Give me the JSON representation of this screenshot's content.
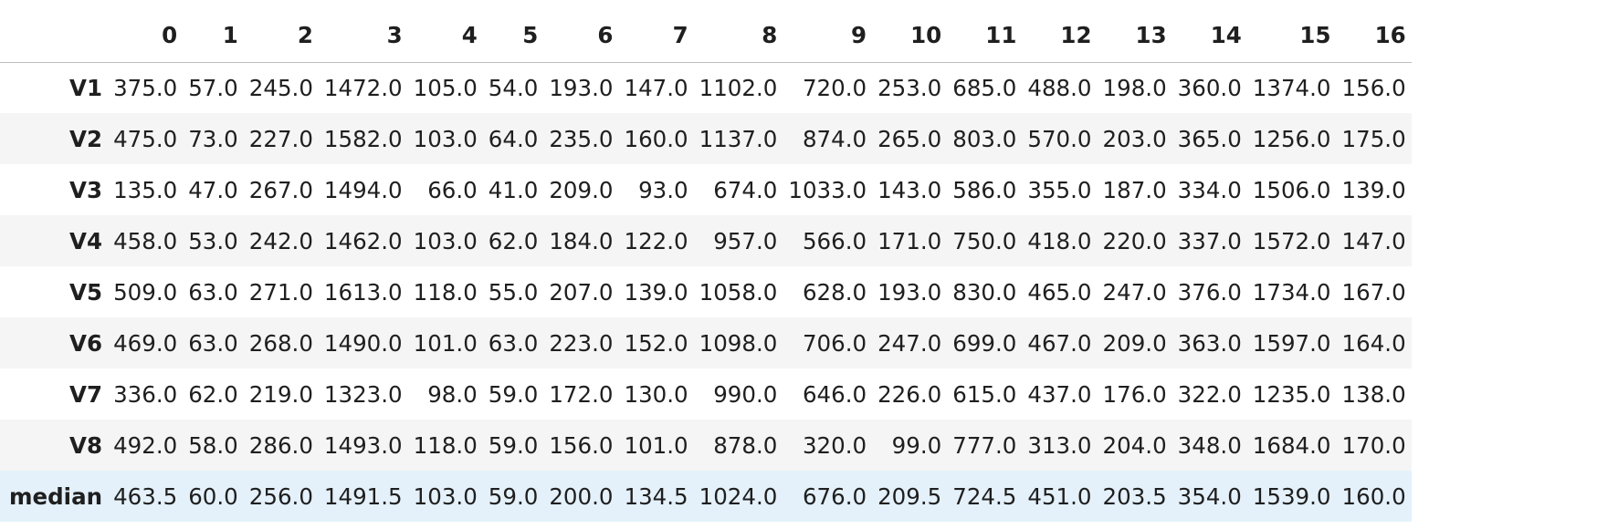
{
  "table": {
    "columns": [
      "0",
      "1",
      "2",
      "3",
      "4",
      "5",
      "6",
      "7",
      "8",
      "9",
      "10",
      "11",
      "12",
      "13",
      "14",
      "15",
      "16"
    ],
    "rows": [
      {
        "label": "V1",
        "values": [
          "375.0",
          "57.0",
          "245.0",
          "1472.0",
          "105.0",
          "54.0",
          "193.0",
          "147.0",
          "1102.0",
          "720.0",
          "253.0",
          "685.0",
          "488.0",
          "198.0",
          "360.0",
          "1374.0",
          "156.0"
        ]
      },
      {
        "label": "V2",
        "values": [
          "475.0",
          "73.0",
          "227.0",
          "1582.0",
          "103.0",
          "64.0",
          "235.0",
          "160.0",
          "1137.0",
          "874.0",
          "265.0",
          "803.0",
          "570.0",
          "203.0",
          "365.0",
          "1256.0",
          "175.0"
        ]
      },
      {
        "label": "V3",
        "values": [
          "135.0",
          "47.0",
          "267.0",
          "1494.0",
          "66.0",
          "41.0",
          "209.0",
          "93.0",
          "674.0",
          "1033.0",
          "143.0",
          "586.0",
          "355.0",
          "187.0",
          "334.0",
          "1506.0",
          "139.0"
        ]
      },
      {
        "label": "V4",
        "values": [
          "458.0",
          "53.0",
          "242.0",
          "1462.0",
          "103.0",
          "62.0",
          "184.0",
          "122.0",
          "957.0",
          "566.0",
          "171.0",
          "750.0",
          "418.0",
          "220.0",
          "337.0",
          "1572.0",
          "147.0"
        ]
      },
      {
        "label": "V5",
        "values": [
          "509.0",
          "63.0",
          "271.0",
          "1613.0",
          "118.0",
          "55.0",
          "207.0",
          "139.0",
          "1058.0",
          "628.0",
          "193.0",
          "830.0",
          "465.0",
          "247.0",
          "376.0",
          "1734.0",
          "167.0"
        ]
      },
      {
        "label": "V6",
        "values": [
          "469.0",
          "63.0",
          "268.0",
          "1490.0",
          "101.0",
          "63.0",
          "223.0",
          "152.0",
          "1098.0",
          "706.0",
          "247.0",
          "699.0",
          "467.0",
          "209.0",
          "363.0",
          "1597.0",
          "164.0"
        ]
      },
      {
        "label": "V7",
        "values": [
          "336.0",
          "62.0",
          "219.0",
          "1323.0",
          "98.0",
          "59.0",
          "172.0",
          "130.0",
          "990.0",
          "646.0",
          "226.0",
          "615.0",
          "437.0",
          "176.0",
          "322.0",
          "1235.0",
          "138.0"
        ]
      },
      {
        "label": "V8",
        "values": [
          "492.0",
          "58.0",
          "286.0",
          "1493.0",
          "118.0",
          "59.0",
          "156.0",
          "101.0",
          "878.0",
          "320.0",
          "99.0",
          "777.0",
          "313.0",
          "204.0",
          "348.0",
          "1684.0",
          "170.0"
        ]
      },
      {
        "label": "median",
        "values": [
          "463.5",
          "60.0",
          "256.0",
          "1491.5",
          "103.0",
          "59.0",
          "200.0",
          "134.5",
          "1024.0",
          "676.0",
          "209.5",
          "724.5",
          "451.0",
          "203.5",
          "354.0",
          "1539.0",
          "160.0"
        ]
      }
    ]
  },
  "colors": {
    "stripe": "#f5f5f5",
    "highlight": "#e4f1fb"
  }
}
